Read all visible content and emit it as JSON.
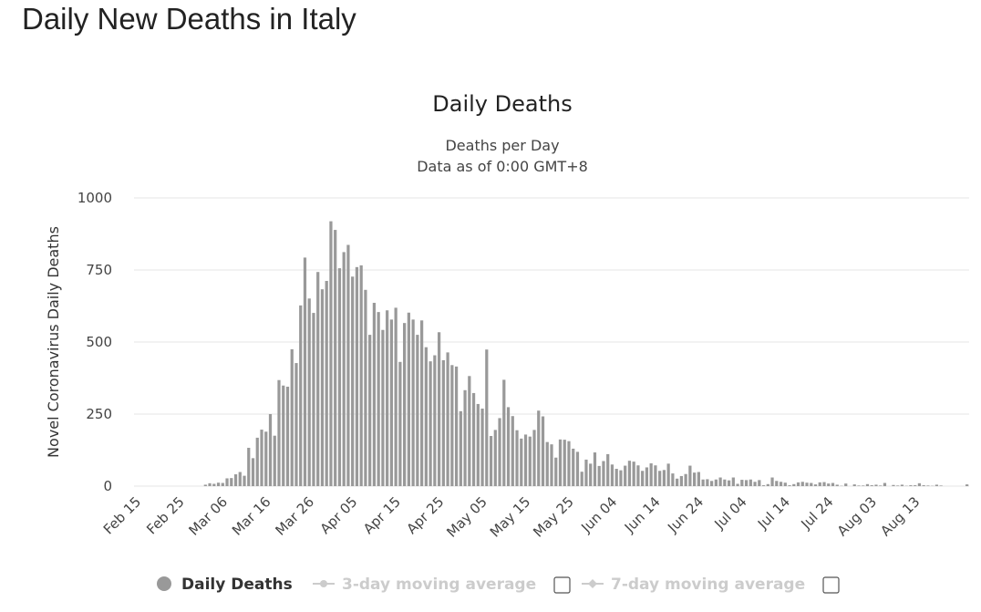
{
  "page": {
    "title": "Daily New Deaths in Italy"
  },
  "chart_data": {
    "type": "bar",
    "title": "Daily Deaths",
    "subtitle_lines": [
      "Deaths per Day",
      "Data as of 0:00 GMT+8"
    ],
    "ylabel": "Novel Coronavirus Daily Deaths",
    "xlabel": "",
    "ylim": [
      0,
      1000
    ],
    "yticks": [
      0,
      250,
      500,
      750,
      1000
    ],
    "x_start": "2020-02-15",
    "x_tick_labels": [
      "Feb 15",
      "Feb 25",
      "Mar 06",
      "Mar 16",
      "Mar 26",
      "Apr 05",
      "Apr 15",
      "Apr 25",
      "May 05",
      "May 15",
      "May 25",
      "Jun 04",
      "Jun 14",
      "Jun 24",
      "Jul 04",
      "Jul 14",
      "Jul 24",
      "Aug 03",
      "Aug 13"
    ],
    "x_tick_dates": [
      "2020-02-15",
      "2020-02-25",
      "2020-03-06",
      "2020-03-16",
      "2020-03-26",
      "2020-04-05",
      "2020-04-15",
      "2020-04-25",
      "2020-05-05",
      "2020-05-15",
      "2020-05-25",
      "2020-06-04",
      "2020-06-14",
      "2020-06-24",
      "2020-07-04",
      "2020-07-14",
      "2020-07-24",
      "2020-08-03",
      "2020-08-13"
    ],
    "grid": true,
    "colors": {
      "bars": "#999999",
      "grid": "#e6e6e6"
    },
    "series": [
      {
        "name": "Daily Deaths",
        "values": [
          0,
          0,
          0,
          0,
          0,
          0,
          0,
          0,
          0,
          0,
          0,
          0,
          0,
          0,
          0,
          0,
          5,
          10,
          8,
          12,
          11,
          27,
          28,
          41,
          49,
          36,
          133,
          97,
          168,
          196,
          189,
          250,
          175,
          368,
          349,
          345,
          475,
          427,
          627,
          793,
          651,
          601,
          743,
          683,
          712,
          919,
          889,
          756,
          812,
          837,
          727,
          760,
          766,
          681,
          525,
          636,
          604,
          542,
          610,
          578,
          619,
          431,
          566,
          602,
          578,
          525,
          575,
          482,
          433,
          454,
          534,
          437,
          464,
          420,
          415,
          260,
          333,
          382,
          323,
          285,
          269,
          474,
          174,
          195,
          236,
          369,
          274,
          243,
          194,
          165,
          179,
          172,
          195,
          262,
          242,
          153,
          145,
          99,
          162,
          161,
          156,
          130,
          119,
          50,
          92,
          78,
          117,
          70,
          87,
          111,
          75,
          60,
          55,
          71,
          88,
          85,
          72,
          53,
          65,
          79,
          72,
          53,
          56,
          78,
          44,
          26,
          35,
          42,
          71,
          47,
          49,
          23,
          24,
          18,
          23,
          30,
          23,
          20,
          30,
          8,
          22,
          21,
          23,
          15,
          21,
          3,
          7,
          30,
          18,
          15,
          12,
          3,
          7,
          13,
          15,
          12,
          11,
          6,
          13,
          14,
          9,
          11,
          5,
          1,
          9,
          0,
          6,
          2,
          2,
          7,
          3,
          5,
          2,
          11,
          0,
          4,
          2,
          5,
          1,
          3,
          3,
          10,
          3,
          2,
          1,
          5,
          2,
          0,
          0,
          0,
          0,
          0,
          6
        ]
      }
    ],
    "legend": {
      "position": "bottom-center",
      "items": [
        {
          "label": "Daily Deaths",
          "active": true
        },
        {
          "label": "3-day moving average",
          "active": false,
          "checked": false
        },
        {
          "label": "7-day moving average",
          "active": false,
          "checked": false
        }
      ]
    }
  }
}
